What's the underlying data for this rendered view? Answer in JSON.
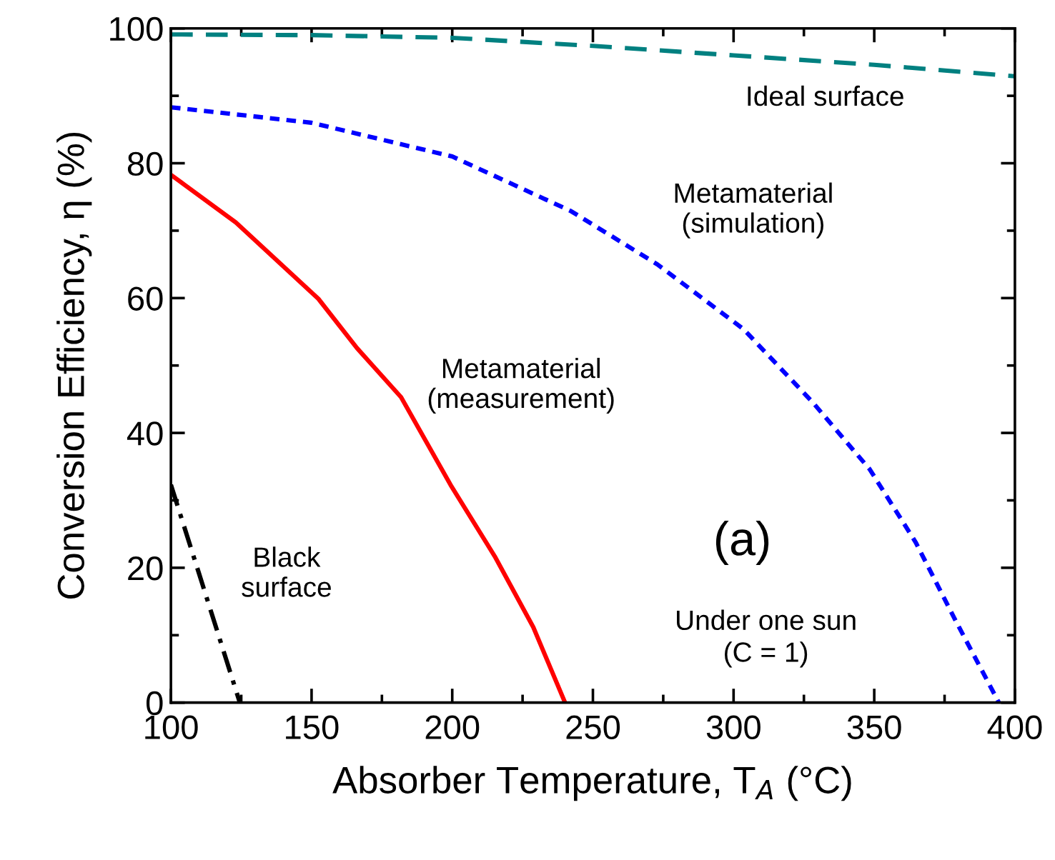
{
  "chart_data": {
    "type": "line",
    "xlabel": "Absorber Temperature, T$_{A}$ (°C)",
    "ylabel": "Conversion Efficiency, η (%)",
    "xlim": [
      100,
      400
    ],
    "ylim": [
      0,
      100
    ],
    "xticks": [
      100,
      150,
      200,
      250,
      300,
      350,
      400
    ],
    "yticks": [
      0,
      20,
      40,
      60,
      80,
      100
    ],
    "grid": false,
    "legend": false,
    "marker": "none",
    "series": [
      {
        "name": "Ideal surface",
        "color": "#008080",
        "line_style": "dashed",
        "x": [
          100,
          150,
          200,
          250,
          300,
          350,
          400
        ],
        "values": [
          99.1,
          99.0,
          98.6,
          97.4,
          96.0,
          94.6,
          92.9
        ]
      },
      {
        "name": "Metamaterial\n(simulation)",
        "color": "#0000ff",
        "line_style": "dotted",
        "x": [
          100,
          150,
          200,
          242.2,
          272.9,
          303.5,
          328,
          348.4,
          364.7,
          379,
          394.3
        ],
        "values": [
          88.3,
          86.0,
          81.0,
          72.9,
          65.0,
          55.4,
          44.6,
          34.6,
          23.8,
          12.1,
          0
        ]
      },
      {
        "name": "Metamaterial\n(measurement)",
        "color": "#ff0000",
        "line_style": "solid",
        "x": [
          100.6,
          123.1,
          152.4,
          166.1,
          181.8,
          199.4,
          215.1,
          228.8,
          240.1
        ],
        "values": [
          78.1,
          71.2,
          59.9,
          52.6,
          45.3,
          32.3,
          21.7,
          11.2,
          0
        ]
      },
      {
        "name": "Black\nsurface",
        "color": "#000000",
        "line_style": "dashdot",
        "x": [
          100,
          109.8,
          124.5
        ],
        "values": [
          32.3,
          19.4,
          0
        ]
      }
    ],
    "annotations": [
      "(a)",
      "Under one sun\n(C = 1)"
    ]
  }
}
